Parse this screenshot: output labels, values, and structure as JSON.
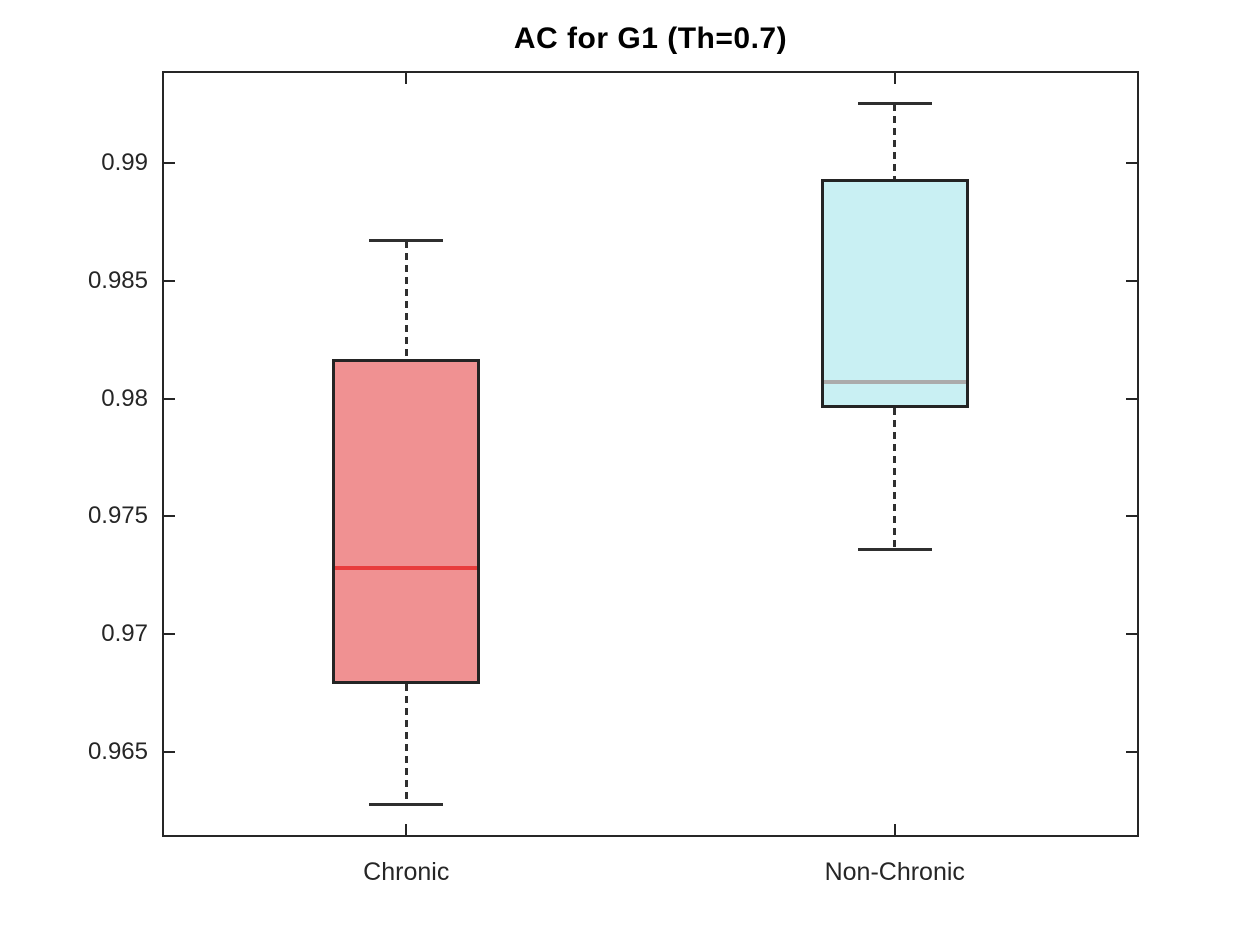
{
  "chart_data": {
    "type": "boxplot",
    "title": "AC for G1 (Th=0.7)",
    "categories": [
      "Chronic",
      "Non-Chronic"
    ],
    "xlabel": "",
    "ylabel": "",
    "ylim": [
      0.9614,
      0.9939
    ],
    "yticks": [
      0.965,
      0.97,
      0.975,
      0.98,
      0.985,
      0.99
    ],
    "grid": false,
    "legend": "none",
    "box_width_frac": 0.151,
    "cap_width_frac": 0.076,
    "whisker_style": "dashed",
    "whisker_color": "#2F2F2F",
    "edge_color": "#242424",
    "axis_color": "#262626",
    "background_color": "#FFFFFF",
    "series": [
      {
        "name": "Chronic",
        "center_frac": 0.25,
        "min": 0.9628,
        "q1": 0.9679,
        "median": 0.9728,
        "q3": 0.9817,
        "max": 0.9867,
        "box_fill": "#F09192",
        "median_color": "#E83C3C"
      },
      {
        "name": "Non-Chronic",
        "center_frac": 0.75,
        "min": 0.9736,
        "q1": 0.9796,
        "median": 0.9807,
        "q3": 0.9893,
        "max": 0.9925,
        "box_fill": "#C9F0F3",
        "median_color": "#ABABAB"
      }
    ]
  }
}
